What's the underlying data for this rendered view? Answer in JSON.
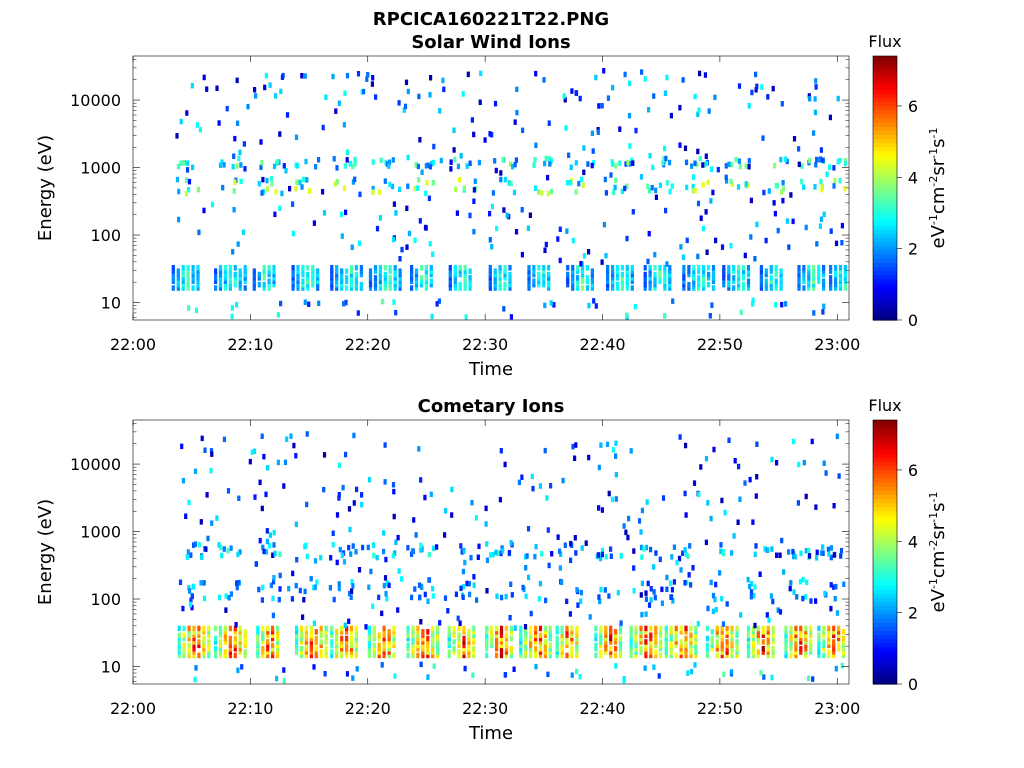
{
  "figure": {
    "filename": "RPCICA160221T22.PNG"
  },
  "chart_data": [
    {
      "type": "heatmap",
      "title": "Solar Wind Ions",
      "xlabel": "Time",
      "ylabel": "Energy (eV)",
      "x_ticks": [
        "22:00",
        "22:10",
        "22:20",
        "22:30",
        "22:40",
        "22:50",
        "23:00"
      ],
      "x_range": [
        "22:00",
        "23:01"
      ],
      "y_scale": "log",
      "y_ticks": [
        10,
        100,
        1000,
        10000
      ],
      "y_tick_labels": [
        "10",
        "100",
        "1000",
        "10000"
      ],
      "ylim": [
        5.5,
        45000
      ],
      "colorbar": {
        "label": "Flux",
        "unit_label": "eV-1cm-2sr-1s-1",
        "range": [
          0,
          7.4
        ],
        "ticks": [
          0,
          2,
          4,
          6
        ],
        "tick_labels": [
          "0",
          "2",
          "4",
          "6"
        ],
        "colormap": "jet"
      },
      "bands": [
        {
          "energy_eV": [
            18,
            38
          ],
          "flux_level": 3.2,
          "description": "periodic bursts every ~3.2 min"
        },
        {
          "energy_eV": [
            450,
            750
          ],
          "flux_level": 3.5
        },
        {
          "energy_eV": [
            1100,
            1500
          ],
          "flux_level": 3.0
        }
      ],
      "burst_times_min": [
        4.3,
        7.9,
        11.2,
        14.5,
        17.8,
        21.1,
        24.6,
        27.9,
        31.3,
        34.6,
        37.9,
        41.3,
        44.5,
        47.8,
        51.2,
        54.4,
        57.6,
        60.3
      ]
    },
    {
      "type": "heatmap",
      "title": "Cometary Ions",
      "xlabel": "Time",
      "ylabel": "Energy (eV)",
      "x_ticks": [
        "22:00",
        "22:10",
        "22:20",
        "22:30",
        "22:40",
        "22:50",
        "23:00"
      ],
      "x_range": [
        "22:00",
        "23:01"
      ],
      "y_scale": "log",
      "y_ticks": [
        10,
        100,
        1000,
        10000
      ],
      "y_tick_labels": [
        "10",
        "100",
        "1000",
        "10000"
      ],
      "ylim": [
        5.5,
        45000
      ],
      "colorbar": {
        "label": "Flux",
        "unit_label": "eV-1cm-2sr-1s-1",
        "range": [
          0,
          7.4
        ],
        "ticks": [
          0,
          2,
          4,
          6
        ],
        "tick_labels": [
          "0",
          "2",
          "4",
          "6"
        ],
        "colormap": "jet"
      },
      "bands": [
        {
          "energy_eV": [
            16,
            45
          ],
          "flux_level": 6.0,
          "description": "periodic intense bursts peaking near 25 eV"
        },
        {
          "energy_eV": [
            450,
            700
          ],
          "flux_level": 2.5
        },
        {
          "energy_eV": [
            100,
            200
          ],
          "flux_level": 2.2
        }
      ],
      "burst_times_min": [
        4.8,
        7.9,
        11.5,
        14.8,
        17.8,
        21.0,
        24.3,
        27.8,
        31.0,
        33.9,
        37.0,
        40.3,
        43.3,
        46.3,
        49.8,
        53.3,
        56.5,
        59.3
      ]
    }
  ]
}
